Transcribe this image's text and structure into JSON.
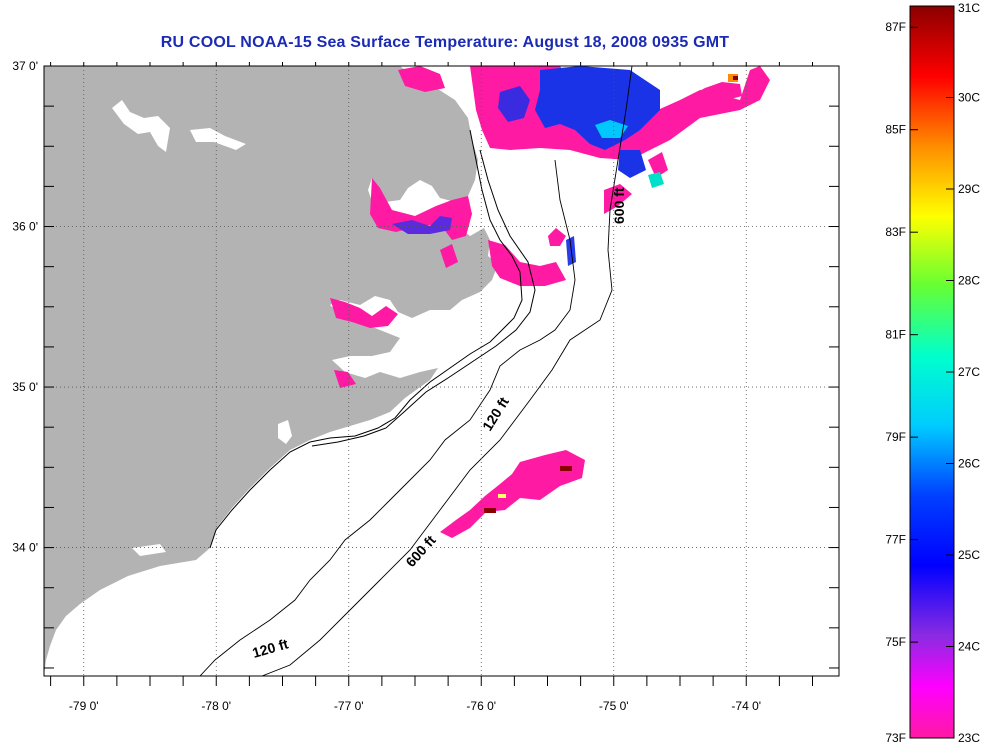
{
  "title": "RU COOL  NOAA-15  Sea Surface Temperature:  August 18, 2008 0935 GMT",
  "map": {
    "lon_range": [
      -79.3,
      -73.3
    ],
    "lat_range": [
      33.2,
      37.0
    ],
    "lat_labels": [
      {
        "lat": 37,
        "text": "37 0'"
      },
      {
        "lat": 36,
        "text": "36 0'"
      },
      {
        "lat": 35,
        "text": "35 0'"
      },
      {
        "lat": 34,
        "text": "34 0'"
      }
    ],
    "lon_labels": [
      {
        "lon": -79,
        "text": "-79 0'"
      },
      {
        "lon": -78,
        "text": "-78 0'"
      },
      {
        "lon": -77,
        "text": "-77 0'"
      },
      {
        "lon": -76,
        "text": "-76 0'"
      },
      {
        "lon": -75,
        "text": "-75 0'"
      },
      {
        "lon": -74,
        "text": "-74 0'"
      }
    ],
    "contour_labels": [
      {
        "id": "c600-north",
        "text": "600 ft"
      },
      {
        "id": "c120-mid",
        "text": "120 ft"
      },
      {
        "id": "c600-south",
        "text": "600 ft"
      },
      {
        "id": "c120-south",
        "text": "120 ft"
      }
    ],
    "colors": {
      "land": "#b3b3b3",
      "water_nodata": "#ffffff",
      "grid": "#555555"
    }
  },
  "colorbar": {
    "fahrenheit_labels": [
      {
        "value": "87F",
        "t": 0.029
      },
      {
        "value": "85F",
        "t": 0.169
      },
      {
        "value": "83F",
        "t": 0.309
      },
      {
        "value": "81F",
        "t": 0.449
      },
      {
        "value": "79F",
        "t": 0.589
      },
      {
        "value": "77F",
        "t": 0.729
      },
      {
        "value": "75F",
        "t": 0.869
      },
      {
        "value": "73F",
        "t": 1.0
      }
    ],
    "celsius_labels": [
      {
        "value": "31C",
        "t": 0.0
      },
      {
        "value": "30C",
        "t": 0.125
      },
      {
        "value": "29C",
        "t": 0.25
      },
      {
        "value": "28C",
        "t": 0.375
      },
      {
        "value": "27C",
        "t": 0.5
      },
      {
        "value": "26C",
        "t": 0.625
      },
      {
        "value": "25C",
        "t": 0.75
      },
      {
        "value": "24C",
        "t": 0.875
      },
      {
        "value": "23C",
        "t": 1.0
      }
    ],
    "gradient": [
      "#8b0000",
      "#ff0000",
      "#ff8c00",
      "#ffff00",
      "#66ff33",
      "#00ffcc",
      "#00ccff",
      "#0040ff",
      "#0000ff",
      "#8a2be2",
      "#ff00ff",
      "#ff1aa3"
    ]
  }
}
